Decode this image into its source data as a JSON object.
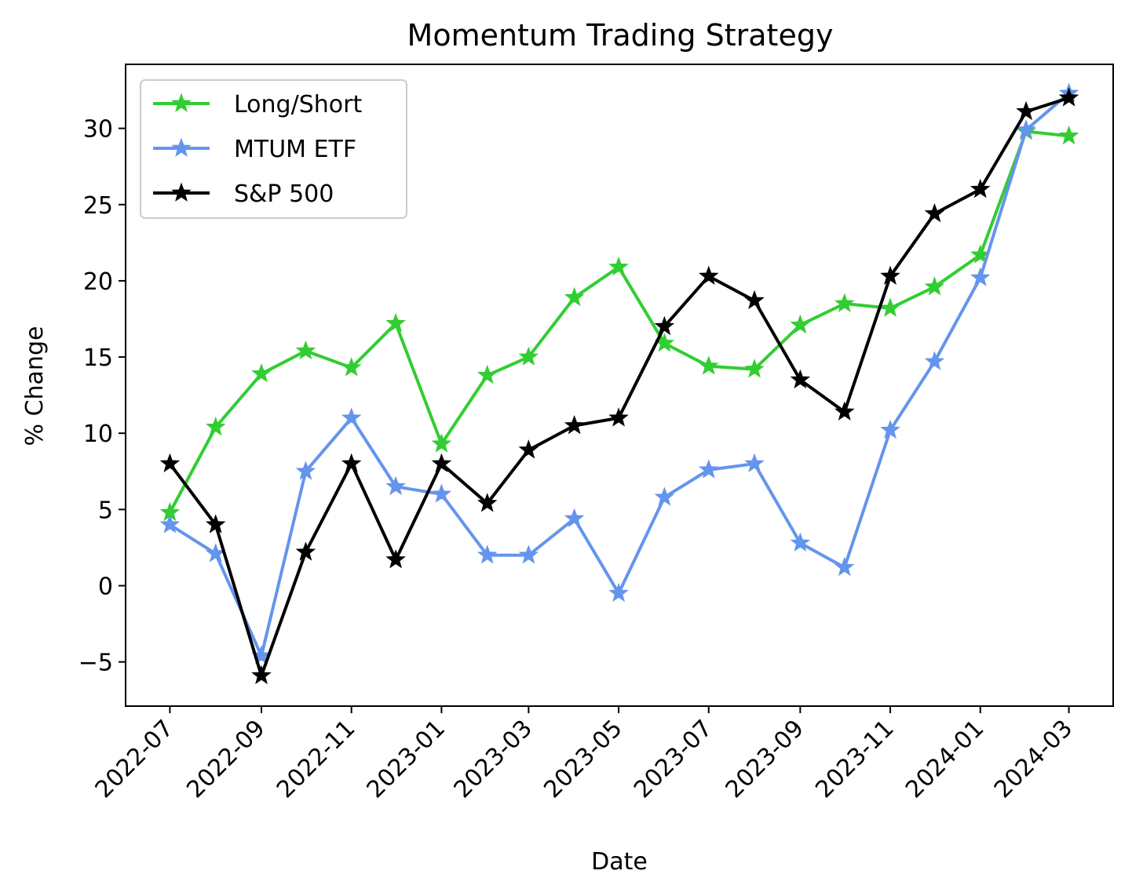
{
  "chart_data": {
    "type": "line",
    "title": "Momentum Trading Strategy",
    "xlabel": "Date",
    "ylabel": "% Change",
    "x": [
      "2022-07-01",
      "2022-08-01",
      "2022-09-01",
      "2022-10-01",
      "2022-11-01",
      "2022-12-01",
      "2023-01-01",
      "2023-02-01",
      "2023-03-01",
      "2023-04-01",
      "2023-05-01",
      "2023-06-01",
      "2023-07-01",
      "2023-08-01",
      "2023-09-01",
      "2023-10-01",
      "2023-11-01",
      "2023-12-01",
      "2024-01-01",
      "2024-02-01",
      "2024-03-01"
    ],
    "xticks": [
      "2022-07",
      "2022-09",
      "2022-11",
      "2023-01",
      "2023-03",
      "2023-05",
      "2023-07",
      "2023-09",
      "2023-11",
      "2024-01",
      "2024-03"
    ],
    "xlim": [
      "2022-06-01",
      "2024-03-31"
    ],
    "ylim": [
      -7.9,
      34.2
    ],
    "yticks": [
      -5,
      0,
      5,
      10,
      15,
      20,
      25,
      30
    ],
    "ytick_labels": [
      "−5",
      "0",
      "5",
      "10",
      "15",
      "20",
      "25",
      "30"
    ],
    "grid": false,
    "legend": "upper-left",
    "marker": "star",
    "series": [
      {
        "name": "Long/Short",
        "color": "#32cd32",
        "values": [
          4.8,
          10.4,
          13.9,
          15.4,
          14.3,
          17.2,
          9.3,
          13.8,
          15.0,
          18.9,
          20.9,
          15.9,
          14.4,
          14.2,
          17.1,
          18.5,
          18.2,
          19.6,
          21.7,
          29.8,
          29.5
        ]
      },
      {
        "name": "MTUM ETF",
        "color": "#6495ed",
        "values": [
          4.0,
          2.1,
          -4.6,
          7.5,
          11.0,
          6.5,
          6.0,
          2.0,
          2.0,
          4.4,
          -0.5,
          5.8,
          7.6,
          8.0,
          2.8,
          1.2,
          10.2,
          14.7,
          20.2,
          29.9,
          32.3
        ]
      },
      {
        "name": "S&P 500",
        "color": "#000000",
        "values": [
          8.0,
          4.0,
          -5.9,
          2.2,
          8.0,
          1.7,
          8.0,
          5.4,
          8.9,
          10.5,
          11.0,
          17.0,
          20.3,
          18.7,
          13.5,
          11.4,
          20.3,
          24.4,
          26.0,
          31.1,
          32.0
        ]
      }
    ]
  }
}
